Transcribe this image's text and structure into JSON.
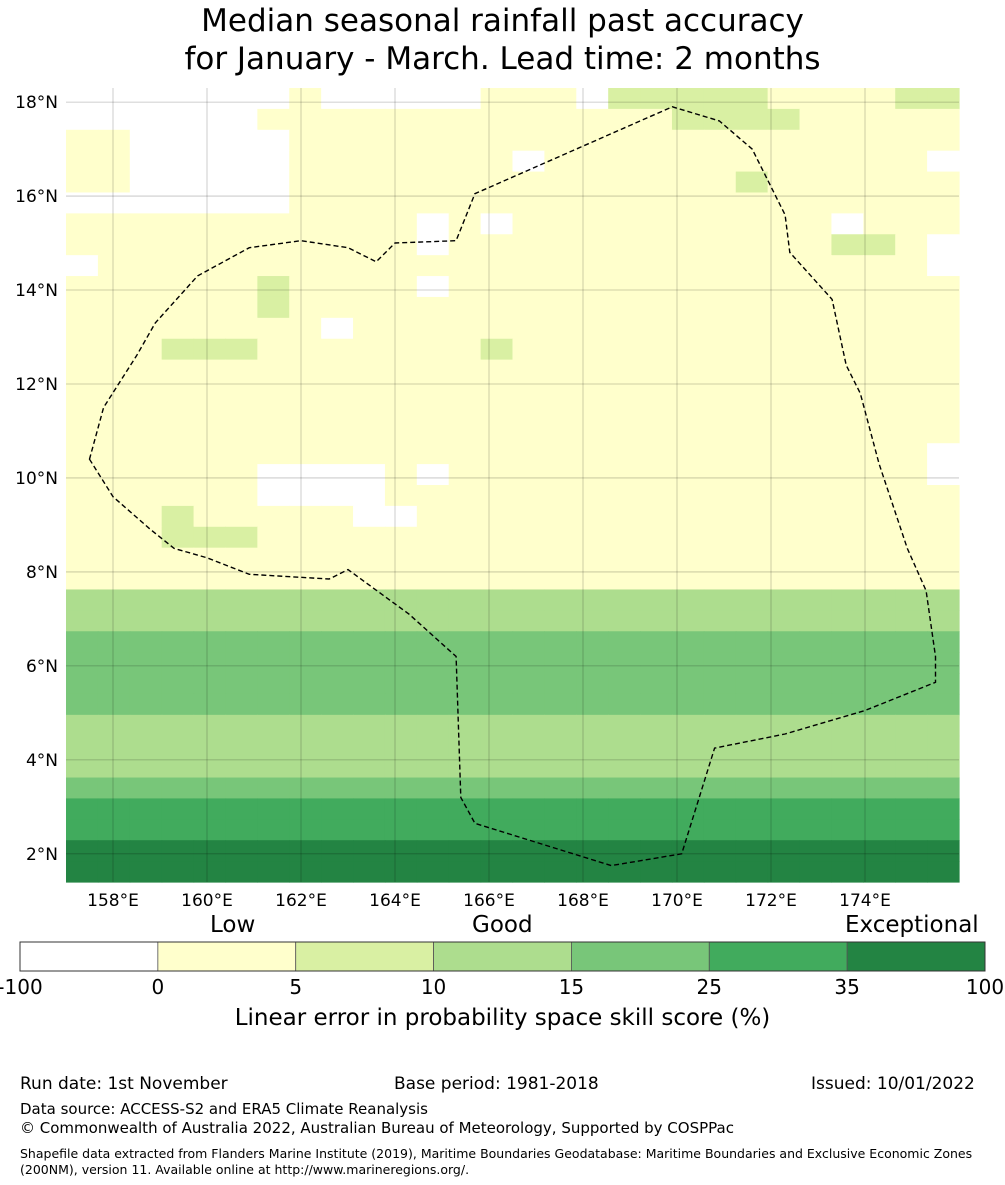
{
  "title_lines": [
    "Median seasonal rainfall past accuracy",
    "for January - March. Lead time: 2 months"
  ],
  "map": {
    "lat_labels": [
      "18°N",
      "16°N",
      "14°N",
      "12°N",
      "10°N",
      "8°N",
      "6°N",
      "4°N",
      "2°N"
    ],
    "lon_labels": [
      "158°E",
      "160°E",
      "162°E",
      "164°E",
      "166°E",
      "168°E",
      "170°E",
      "172°E",
      "174°E"
    ],
    "lon_range": [
      157,
      176
    ],
    "lat_range": [
      1.4,
      18.3
    ],
    "grid_lons": [
      158,
      160,
      162,
      164,
      166,
      168,
      170,
      172,
      174
    ],
    "grid_lats": [
      18,
      16,
      14,
      12,
      10,
      8,
      6,
      4,
      2
    ],
    "gridlines": true,
    "cell_size_deg": 0.83,
    "grid_rows_description": "rows north to south, columns west to east; values are colour class index 0-6",
    "class_grid": [
      "0000000100000111022222111122",
      "0000001111111111111222211111",
      "1100000111111111111111111111",
      "1100000111111101111111111110",
      "1100000111111111111112111111",
      "0000000111111111111111111111",
      "1111111111101011111111110111",
      "1111111111101111111111112210",
      "0111111111111111111111111110",
      "1111112111101111111111111111",
      "1111112111111111111111111111",
      "1111111101111111111111111111",
      "1112221111111211111111111111",
      "1111111111111111111111111111",
      "1111111111111111111111111111",
      "1111111111111111111111111111",
      "1111111111111111111111111111",
      "1111111111111111111111111110",
      "1111110000101111111111111110",
      "1111110000111111111111111111",
      "1112111110011111111111111111",
      "1112221111111111111111111111",
      "1111111111111111111111111111",
      "1111111111111111111111111111",
      "3333333333333333333333333333",
      "3333333333333333333333333333",
      "4444444444444444444444444444",
      "4444444444444444444444444444",
      "4444444444444444444444444444",
      "4444444444444444444444444444",
      "3333333333333333333333333333",
      "3333333333333333333333333333",
      "3333333333333333333333333333",
      "4444444444444444444444444444",
      "5555555555555555555555555555",
      "5555555555555555555555555555",
      "6666666666666666666666666666",
      "6666666666666666666666666666"
    ],
    "boundary_path_lonlat": [
      [
        157.5,
        10.4
      ],
      [
        158.0,
        9.6
      ],
      [
        158.8,
        8.9
      ],
      [
        159.3,
        8.5
      ],
      [
        160.0,
        8.3
      ],
      [
        160.9,
        7.95
      ],
      [
        162.6,
        7.85
      ],
      [
        163.0,
        8.05
      ],
      [
        164.3,
        7.1
      ],
      [
        165.3,
        6.2
      ],
      [
        165.4,
        3.2
      ],
      [
        165.7,
        2.65
      ],
      [
        168.6,
        1.75
      ],
      [
        170.1,
        2.0
      ],
      [
        170.8,
        4.25
      ],
      [
        172.3,
        4.55
      ],
      [
        174.0,
        5.05
      ],
      [
        175.5,
        5.65
      ],
      [
        175.5,
        6.2
      ],
      [
        175.3,
        7.6
      ],
      [
        174.9,
        8.5
      ],
      [
        174.6,
        9.4
      ],
      [
        174.3,
        10.3
      ],
      [
        173.9,
        11.8
      ],
      [
        173.6,
        12.4
      ],
      [
        173.3,
        13.8
      ],
      [
        172.4,
        14.8
      ],
      [
        172.3,
        15.6
      ],
      [
        171.6,
        17.0
      ],
      [
        170.9,
        17.6
      ],
      [
        169.9,
        17.9
      ],
      [
        165.7,
        16.05
      ],
      [
        165.3,
        15.05
      ],
      [
        164.0,
        15.0
      ],
      [
        163.6,
        14.6
      ],
      [
        163.0,
        14.9
      ],
      [
        162.0,
        15.05
      ],
      [
        160.9,
        14.9
      ],
      [
        159.8,
        14.3
      ],
      [
        158.9,
        13.3
      ],
      [
        158.5,
        12.6
      ],
      [
        157.8,
        11.5
      ],
      [
        157.5,
        10.4
      ]
    ]
  },
  "colorbar": {
    "category_words": [
      "Low",
      "Good",
      "Exceptional"
    ],
    "tick_labels": [
      "-100",
      "0",
      "5",
      "10",
      "15",
      "25",
      "35",
      "100"
    ],
    "colors": [
      "#ffffff",
      "#ffffcc",
      "#d9f0a3",
      "#addd8e",
      "#78c679",
      "#41ab5d",
      "#238443"
    ],
    "title": "Linear error in probability space skill score (%)"
  },
  "footer": {
    "run_date": "Run date: 1st November",
    "base_period": "Base period: 1981-2018",
    "issued": "Issued: 10/01/2022",
    "data_source": "Data source: ACCESS-S2 and ERA5 Climate Reanalysis",
    "copyright": "© Commonwealth of Australia 2022, Australian Bureau of Meteorology, Supported by COSPPac",
    "shapefile_note": "Shapefile data extracted from Flanders Marine Institute (2019), Maritime Boundaries Geodatabase: Maritime Boundaries and Exclusive Economic Zones (200NM), version 11. Available online at http://www.marineregions.org/."
  }
}
